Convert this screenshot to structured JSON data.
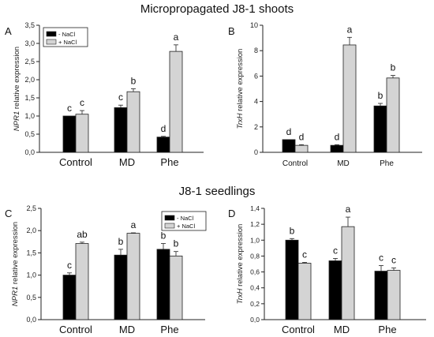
{
  "sections": [
    {
      "title": "Micropropagated J8-1 shoots"
    },
    {
      "title": "J8-1 seedlings"
    }
  ],
  "colors": {
    "no_nacl": "#000000",
    "plus_nacl": "#d4d4d4",
    "axis": "#222222"
  },
  "chart_data": [
    {
      "panel": "A",
      "type": "bar",
      "ylabel_italic": "NPR1",
      "ylabel_rest": " relative expression",
      "ylim": [
        0,
        3.5
      ],
      "yticks": [
        "0,0",
        "0,5",
        "1,0",
        "1,5",
        "2,0",
        "2,5",
        "3,0",
        "3,5"
      ],
      "categories": [
        "Control",
        "MD",
        "Phe"
      ],
      "legend": {
        "position": "top-left",
        "entries": [
          "- NaCl",
          "+ NaCl"
        ]
      },
      "series": [
        {
          "name": "- NaCl",
          "values": [
            1.0,
            1.23,
            0.42
          ],
          "errors": [
            0.0,
            0.07,
            0.02
          ],
          "letters": [
            "c",
            "c",
            "d"
          ]
        },
        {
          "name": "+ NaCl",
          "values": [
            1.05,
            1.67,
            2.78
          ],
          "errors": [
            0.1,
            0.08,
            0.18
          ],
          "letters": [
            "c",
            "b",
            "a"
          ]
        }
      ]
    },
    {
      "panel": "B",
      "type": "bar",
      "ylabel_italic": "TrxH",
      "ylabel_rest": " relative expression",
      "ylim": [
        0,
        10
      ],
      "yticks": [
        "0",
        "2",
        "4",
        "6",
        "8",
        "10"
      ],
      "categories": [
        "Control",
        "MD",
        "Phe"
      ],
      "series": [
        {
          "name": "- NaCl",
          "values": [
            1.0,
            0.55,
            3.65
          ],
          "errors": [
            0.0,
            0.05,
            0.2
          ],
          "letters": [
            "d",
            "d",
            "b"
          ]
        },
        {
          "name": "+ NaCl",
          "values": [
            0.55,
            8.45,
            5.85
          ],
          "errors": [
            0.05,
            0.6,
            0.2
          ],
          "letters": [
            "d",
            "a",
            "b"
          ]
        }
      ]
    },
    {
      "panel": "C",
      "type": "bar",
      "ylabel_italic": "NPR1",
      "ylabel_rest": " relative expression",
      "ylim": [
        0,
        2.5
      ],
      "yticks": [
        "0,0",
        "0,5",
        "1,0",
        "1,5",
        "2,0",
        "2,5"
      ],
      "categories": [
        "Control",
        "MD",
        "Phe"
      ],
      "legend": {
        "position": "top-right",
        "entries": [
          "- NaCl",
          "+ NaCl"
        ]
      },
      "series": [
        {
          "name": "- NaCl",
          "values": [
            1.0,
            1.45,
            1.58
          ],
          "errors": [
            0.05,
            0.13,
            0.13
          ],
          "letters": [
            "c",
            "b",
            "b"
          ]
        },
        {
          "name": "+ NaCl",
          "values": [
            1.71,
            1.94,
            1.43
          ],
          "errors": [
            0.03,
            0.01,
            0.1
          ],
          "letters": [
            "ab",
            "a",
            "b"
          ]
        }
      ]
    },
    {
      "panel": "D",
      "type": "bar",
      "ylabel_italic": "TrxH",
      "ylabel_rest": " relative expression",
      "ylim": [
        0,
        1.4
      ],
      "yticks": [
        "0,0",
        "0,2",
        "0,4",
        "0,6",
        "0,8",
        "1,0",
        "1,2",
        "1,4"
      ],
      "categories": [
        "Control",
        "MD",
        "Phe"
      ],
      "series": [
        {
          "name": "- NaCl",
          "values": [
            1.0,
            0.74,
            0.61
          ],
          "errors": [
            0.02,
            0.03,
            0.07
          ],
          "letters": [
            "b",
            "c",
            "c"
          ]
        },
        {
          "name": "+ NaCl",
          "values": [
            0.71,
            1.17,
            0.62
          ],
          "errors": [
            0.01,
            0.12,
            0.03
          ],
          "letters": [
            "c",
            "a",
            "c"
          ]
        }
      ]
    }
  ]
}
